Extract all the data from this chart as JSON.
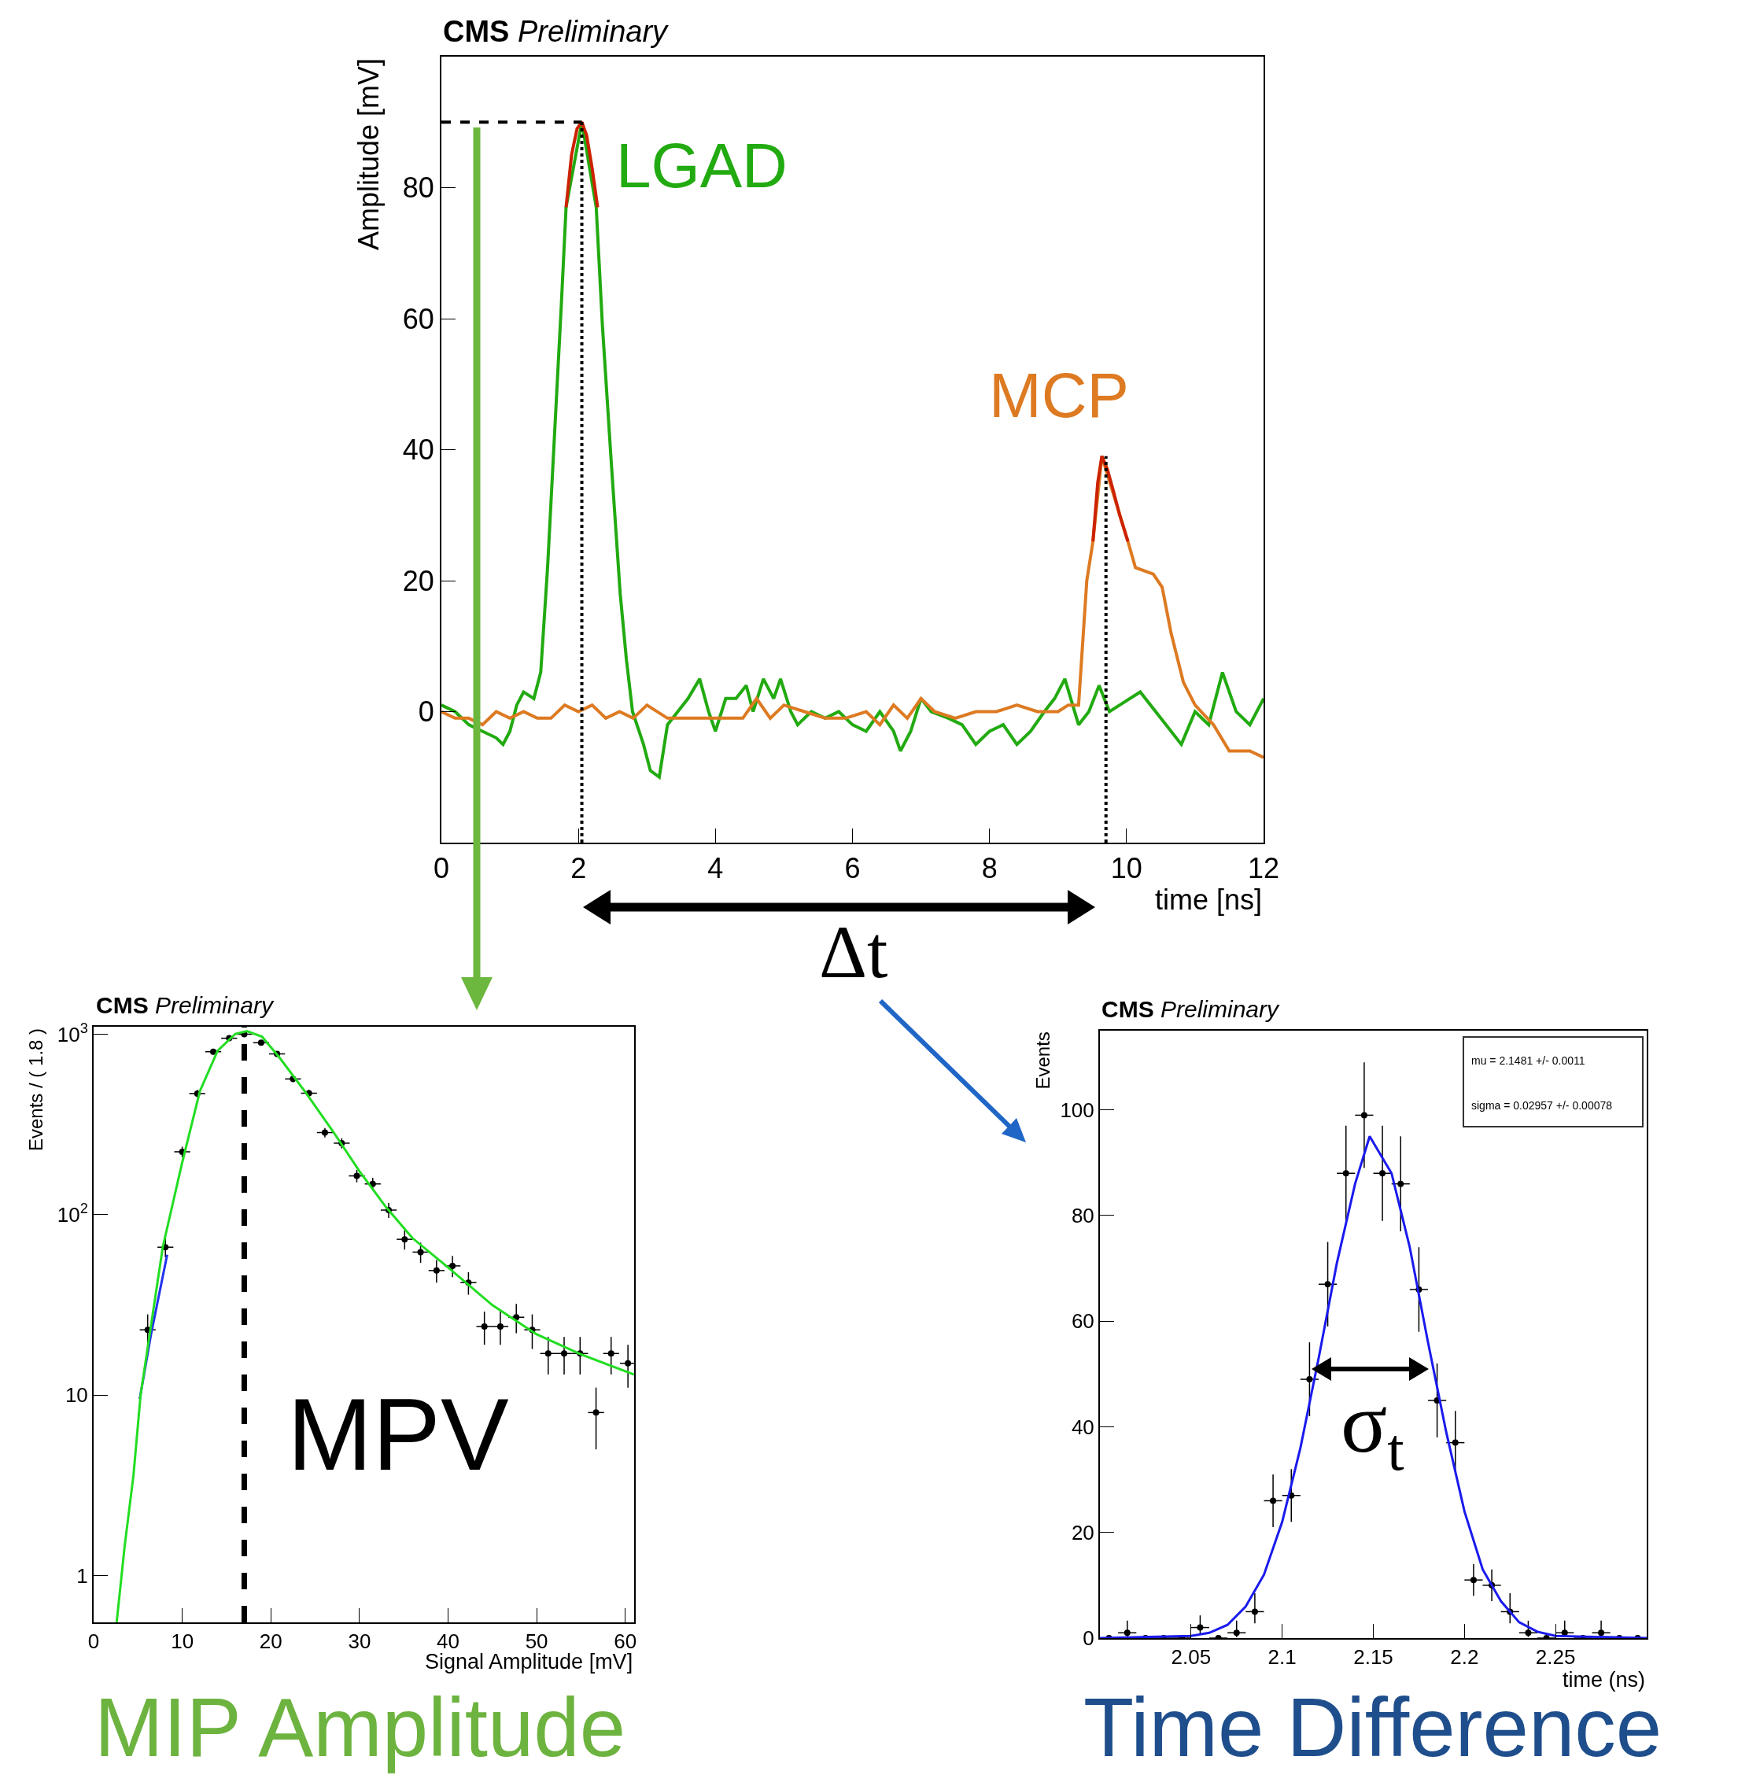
{
  "chart_data": [
    {
      "type": "line",
      "subtitle": "CMS Preliminary",
      "xlabel": "time [ns]",
      "ylabel": "Amplitude [mV]",
      "annotations": [
        "Δt"
      ],
      "xlim": [
        0,
        12
      ],
      "ylim": [
        -20,
        100
      ],
      "xticks": [
        0,
        2,
        4,
        6,
        8,
        10,
        12
      ],
      "yticks": [
        0,
        20,
        40,
        60,
        80
      ],
      "series": [
        {
          "name": "LGAD",
          "color": "#22aa11",
          "x": [
            0,
            0.2,
            0.4,
            0.6,
            0.8,
            0.9,
            1.0,
            1.1,
            1.2,
            1.35,
            1.45,
            1.55,
            1.65,
            1.75,
            1.82,
            2.05,
            2.26,
            2.35,
            2.48,
            2.61,
            2.7,
            2.79,
            2.95,
            3.05,
            3.18,
            3.3,
            3.45,
            3.6,
            3.77,
            3.9,
            4.0,
            4.15,
            4.3,
            4.45,
            4.55,
            4.7,
            4.85,
            4.95,
            5.1,
            5.2,
            5.4,
            5.6,
            5.8,
            6.0,
            6.2,
            6.4,
            6.6,
            6.7,
            6.85,
            7.0,
            7.15,
            7.4,
            7.6,
            7.8,
            8.0,
            8.2,
            8.4,
            8.6,
            8.8,
            8.95,
            9.1,
            9.3,
            9.45,
            9.6,
            9.75,
            9.9,
            10.2,
            10.5,
            10.8,
            11.0,
            11.2,
            11.4,
            11.6,
            11.8,
            12.0
          ],
          "values": [
            1,
            0,
            -2,
            -3,
            -4,
            -5,
            -3,
            1,
            3,
            2,
            6,
            22,
            42,
            62,
            77,
            90,
            77,
            59,
            38,
            18,
            8,
            0,
            -5,
            -9,
            -10,
            -2,
            0,
            2,
            5,
            0,
            -3,
            2,
            2,
            4,
            0,
            5,
            2,
            5,
            0,
            -2,
            0,
            -1,
            0,
            -2,
            -3,
            0,
            -3,
            -6,
            -3,
            2,
            0,
            -1,
            -2,
            -5,
            -3,
            -2,
            -5,
            -3,
            0,
            2,
            5,
            -2,
            0,
            4,
            0,
            1,
            3,
            -1,
            -5,
            0,
            -2,
            6,
            0,
            -2,
            2
          ]
        },
        {
          "name": "MCP",
          "color": "#dd7a22",
          "x": [
            0,
            0.2,
            0.4,
            0.6,
            0.8,
            1.0,
            1.2,
            1.4,
            1.6,
            1.8,
            2.0,
            2.2,
            2.4,
            2.6,
            2.8,
            3.0,
            3.3,
            3.6,
            3.9,
            4.2,
            4.4,
            4.6,
            4.8,
            5.0,
            5.3,
            5.6,
            5.9,
            6.2,
            6.4,
            6.6,
            6.8,
            7.0,
            7.2,
            7.5,
            7.8,
            8.1,
            8.4,
            8.7,
            9.0,
            9.15,
            9.3,
            9.42,
            9.51,
            9.64,
            10.02,
            10.13,
            10.39,
            10.52,
            10.65,
            10.83,
            11.0,
            11.27,
            11.5,
            11.8,
            12.0
          ],
          "values": [
            0,
            -1,
            -1,
            -2,
            0,
            -1,
            0,
            -1,
            -1,
            1,
            0,
            1,
            -1,
            0,
            -1,
            1,
            -1,
            -1,
            -1,
            -1,
            -1,
            2,
            -1,
            1,
            0,
            -1,
            -1,
            0,
            -2,
            1,
            -1,
            2,
            0,
            -1,
            0,
            0,
            1,
            0,
            0,
            1,
            1,
            20,
            26,
            39,
            26,
            22,
            21,
            19,
            12,
            4.5,
            1,
            -2,
            -6,
            -6,
            -7
          ]
        },
        {
          "color": "#cc2200",
          "x": [
            1.82,
            1.9,
            1.98,
            2.05,
            2.12,
            2.2,
            2.28
          ],
          "values": [
            77,
            85,
            89,
            90,
            88,
            83,
            77
          ]
        },
        {
          "color": "#cc2200",
          "x": [
            9.51,
            9.58,
            9.64,
            9.72,
            9.8,
            9.9,
            10.02
          ],
          "values": [
            26,
            35,
            39,
            37,
            34,
            30,
            26
          ]
        },
        {
          "color": "#000000",
          "line_style": "dashed",
          "x": [
            0,
            2.05
          ],
          "values": [
            90,
            90
          ]
        },
        {
          "color": "#000000",
          "line_style": "dotted",
          "x": [
            2.05,
            2.05
          ],
          "values": [
            -20,
            90
          ]
        },
        {
          "color": "#000000",
          "line_style": "dotted",
          "x": [
            9.7,
            9.7
          ],
          "values": [
            -20,
            39
          ]
        }
      ]
    },
    {
      "type": "scatter",
      "title": "MIP Amplitude",
      "subtitle": "CMS Preliminary",
      "xlabel": "Signal Amplitude [mV]",
      "ylabel": "Events / ( 1.8 )",
      "annotations": [
        "MPV"
      ],
      "log": true,
      "xlim": [
        0,
        61
      ],
      "ylim": [
        0.55,
        1100.0
      ],
      "xticks": [
        0,
        10,
        20,
        30,
        40,
        50,
        60
      ],
      "yticks": [
        1,
        10,
        {
          "value": 100,
          "label": "10$^{2}$"
        },
        {
          "value": 1000,
          "label": "10$^{3}$"
        }
      ],
      "ref_lines": [
        {
          "axis": "x",
          "value": 17,
          "color": "#000000",
          "line_style": "dashed"
        }
      ],
      "series": [
        {
          "color": "#000000",
          "marker": "circle",
          "x": [
            6.1,
            8.1,
            10.0,
            11.7,
            13.5,
            15.3,
            17.0,
            18.9,
            20.7,
            22.5,
            24.3,
            26.1,
            28.0,
            29.7,
            31.5,
            33.3,
            35.1,
            36.9,
            38.7,
            40.5,
            42.3,
            44.1,
            45.9,
            47.7,
            49.5,
            51.3,
            53.1,
            54.9,
            56.7,
            58.4,
            60.3
          ],
          "values": [
            23,
            66,
            223,
            469,
            800,
            950,
            1000,
            897,
            778,
            565,
            471,
            285,
            249,
            164,
            148,
            106,
            73,
            62,
            49,
            52,
            42,
            24,
            24,
            27,
            23,
            17,
            17,
            17,
            8,
            17,
            15
          ],
          "errors": [
            5,
            8,
            15,
            22,
            28,
            31,
            32,
            30,
            28,
            24,
            22,
            17,
            16,
            13,
            12,
            10,
            9,
            8,
            7,
            7,
            6,
            5,
            5,
            5,
            5,
            4,
            4,
            4,
            3,
            4,
            4
          ],
          "xerrors": [
            0.9,
            0.9,
            0.9,
            0.9,
            0.9,
            0.9,
            0.9,
            0.9,
            0.9,
            0.9,
            0.9,
            0.9,
            0.9,
            0.9,
            0.9,
            0.9,
            0.9,
            0.9,
            0.9,
            0.9,
            0.9,
            0.9,
            0.9,
            0.9,
            0.9,
            0.9,
            0.9,
            0.9,
            0.9,
            0.9,
            0.9
          ]
        },
        {
          "type": "line",
          "color": "#2233ee",
          "x": [
            5.2,
            6.5,
            8.3
          ],
          "values": [
            9.5,
            22,
            60
          ]
        },
        {
          "type": "line",
          "color": "#22dd22",
          "x": [
            2.6,
            3.5,
            4.5,
            5.3,
            7.8,
            10,
            12,
            14,
            16,
            17.3,
            19,
            21,
            24,
            27,
            30,
            33,
            36,
            40,
            45,
            50,
            55,
            61
          ],
          "values": [
            0.55,
            1.45,
            3.6,
            10,
            66,
            195,
            485,
            810,
            1005,
            1040,
            970,
            740,
            470,
            290,
            174,
            110,
            74,
            51,
            31.5,
            21.7,
            16.8,
            13
          ]
        }
      ]
    },
    {
      "type": "scatter",
      "title": "Time Difference",
      "subtitle": "CMS Preliminary",
      "xlabel": "time (ns)",
      "ylabel": "Events",
      "annotations": [
        "mu = 2.1481 +/- 0.0011",
        "sigma = 0.02957 +/- 0.00078",
        "σ$_{t}$"
      ],
      "xlim": [
        2.0,
        2.3
      ],
      "ylim": [
        0,
        115
      ],
      "xticks": [
        2.05,
        2.1,
        2.15,
        2.2,
        2.25
      ],
      "yticks": [
        0,
        20,
        40,
        60,
        80,
        100
      ],
      "series": [
        {
          "color": "#000000",
          "marker": "circle",
          "x": [
            2.005,
            2.015,
            2.025,
            2.035,
            2.045,
            2.055,
            2.065,
            2.075,
            2.085,
            2.095,
            2.105,
            2.115,
            2.125,
            2.135,
            2.145,
            2.155,
            2.165,
            2.175,
            2.185,
            2.195,
            2.205,
            2.215,
            2.225,
            2.235,
            2.245,
            2.255,
            2.265,
            2.275,
            2.285,
            2.295
          ],
          "values": [
            0,
            1,
            0,
            0,
            0,
            2,
            0,
            1,
            5,
            26,
            27,
            49,
            67,
            88,
            99,
            88,
            86,
            66,
            45,
            37,
            11,
            10,
            5,
            1,
            0,
            1,
            0,
            1,
            0,
            0
          ],
          "errors": [
            null,
            [
              0.2,
              3.3
            ],
            null,
            null,
            null,
            [
              0.7,
              4.3
            ],
            null,
            [
              0.2,
              3.3
            ],
            [
              2.8,
              8.5
            ],
            5,
            5,
            7,
            8,
            9,
            10,
            9,
            9,
            8,
            7,
            6,
            3,
            3,
            [
              2.8,
              8.5
            ],
            [
              0.2,
              3.3
            ],
            null,
            [
              0.2,
              3.3
            ],
            null,
            [
              0.2,
              3.3
            ],
            null,
            null
          ],
          "xerrors": [
            0.005,
            0.005,
            0.005,
            0.005,
            0.005,
            0.005,
            0.005,
            0.005,
            0.005,
            0.005,
            0.005,
            0.005,
            0.005,
            0.005,
            0.005,
            0.005,
            0.005,
            0.005,
            0.005,
            0.005,
            0.005,
            0.005,
            0.005,
            0.005,
            0.005,
            0.005,
            0.005,
            0.005,
            0.005,
            0.005
          ]
        },
        {
          "type": "line",
          "color": "#1a1aee",
          "x": [
            2.0,
            2.05,
            2.06,
            2.07,
            2.08,
            2.09,
            2.1,
            2.11,
            2.12,
            2.13,
            2.14,
            2.148,
            2.16,
            2.17,
            2.18,
            2.19,
            2.2,
            2.21,
            2.22,
            2.23,
            2.24,
            2.25,
            2.3
          ],
          "values": [
            0,
            0.4,
            1,
            2.5,
            6,
            12,
            22,
            36,
            53,
            71,
            86,
            95,
            88,
            74,
            56,
            39,
            24,
            13,
            7,
            3,
            1.2,
            0.4,
            0
          ]
        }
      ]
    }
  ]
}
